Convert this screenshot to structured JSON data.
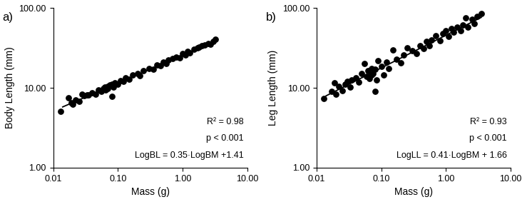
{
  "chart_data": [
    {
      "type": "scatter",
      "title": "a)",
      "x_label": "Mass (g)",
      "y_label": "Body Length (mm)",
      "log": true,
      "xlim": [
        0.01,
        10
      ],
      "ylim": [
        1,
        100
      ],
      "xticks": [
        0.01,
        {
          "value": 0.1,
          "label": "0.10"
        },
        {
          "value": 1,
          "label": "1.00"
        },
        {
          "value": 10,
          "label": "10.00"
        }
      ],
      "yticks": [
        {
          "value": 1,
          "label": "1.00"
        },
        {
          "value": 10,
          "label": "10.00"
        },
        {
          "value": 100,
          "label": "100.00"
        }
      ],
      "annotations": [
        "R² = 0.98",
        "p < 0.001",
        "LogBL = 0.35·LogBM +1.41"
      ],
      "series": [
        {
          "type": "scatter",
          "color": "#000000",
          "marker": "circle",
          "x": [
            0.013,
            0.017,
            0.019,
            0.02,
            0.022,
            0.025,
            0.028,
            0.03,
            0.033,
            0.035,
            0.04,
            0.045,
            0.05,
            0.055,
            0.06,
            0.062,
            0.065,
            0.07,
            0.07,
            0.075,
            0.08,
            0.08,
            0.085,
            0.09,
            0.1,
            0.11,
            0.12,
            0.13,
            0.15,
            0.17,
            0.2,
            0.22,
            0.25,
            0.3,
            0.35,
            0.4,
            0.45,
            0.5,
            0.55,
            0.6,
            0.7,
            0.8,
            0.9,
            1.0,
            1.1,
            1.2,
            1.3,
            1.5,
            1.7,
            1.8,
            2.0,
            2.2,
            2.5,
            2.7,
            3.0,
            3.2
          ],
          "values": [
            5.1,
            7.5,
            6.5,
            6.2,
            7.0,
            6.8,
            8.3,
            8.0,
            8.2,
            8.1,
            8.6,
            8.4,
            9.5,
            9.0,
            9.8,
            10.3,
            9.4,
            10.5,
            9.8,
            10.8,
            7.8,
            11.0,
            10.2,
            11.6,
            11.2,
            12.4,
            12.0,
            13.3,
            12.8,
            14.5,
            15.0,
            14.2,
            16.5,
            17.5,
            17.0,
            19.5,
            18.8,
            21.0,
            20.0,
            22.3,
            23.5,
            24.5,
            24.0,
            27.0,
            26.0,
            28.5,
            27.5,
            30.5,
            31.5,
            32.5,
            33.5,
            34.5,
            36.0,
            35.0,
            38.5,
            41.0
          ]
        },
        {
          "type": "line",
          "color": "#000000",
          "line_style": "solid",
          "x": [
            0.014,
            3.2
          ],
          "values": [
            5.77,
            38.6
          ]
        }
      ]
    },
    {
      "type": "scatter",
      "title": "b)",
      "x_label": "Mass (g)",
      "y_label": "Leg Length (mm)",
      "log": true,
      "xlim": [
        0.01,
        10
      ],
      "ylim": [
        1,
        100
      ],
      "xticks": [
        0.01,
        {
          "value": 0.1,
          "label": "0.10"
        },
        {
          "value": 1,
          "label": "1.00"
        },
        {
          "value": 10,
          "label": "10.00"
        }
      ],
      "yticks": [
        {
          "value": 1,
          "label": "1.00"
        },
        {
          "value": 10,
          "label": "10.00"
        },
        {
          "value": 100,
          "label": "100.00"
        }
      ],
      "annotations": [
        "R² = 0.93",
        "p < 0.001",
        "LogLL = 0.41·LogBM + 1.66"
      ],
      "series": [
        {
          "type": "scatter",
          "color": "#000000",
          "marker": "circle",
          "x": [
            0.013,
            0.017,
            0.019,
            0.02,
            0.022,
            0.025,
            0.028,
            0.03,
            0.033,
            0.035,
            0.04,
            0.045,
            0.05,
            0.055,
            0.06,
            0.062,
            0.065,
            0.07,
            0.07,
            0.075,
            0.08,
            0.08,
            0.085,
            0.09,
            0.1,
            0.11,
            0.12,
            0.13,
            0.15,
            0.17,
            0.2,
            0.22,
            0.25,
            0.3,
            0.35,
            0.4,
            0.45,
            0.5,
            0.55,
            0.6,
            0.7,
            0.8,
            0.9,
            1.0,
            1.1,
            1.2,
            1.3,
            1.5,
            1.7,
            1.8,
            2.0,
            2.2,
            2.5,
            2.7,
            3.0,
            3.5
          ],
          "values": [
            7.3,
            9.0,
            11.5,
            8.3,
            10.5,
            9.2,
            11.0,
            12.0,
            10.2,
            12.5,
            13.5,
            11.8,
            15.0,
            20.0,
            14.0,
            16.5,
            13.0,
            17.5,
            14.5,
            15.2,
            9.0,
            17.0,
            12.5,
            22.0,
            18.5,
            14.5,
            21.0,
            17.5,
            30.0,
            23.0,
            20.5,
            26.0,
            32.0,
            29.5,
            27.0,
            34.0,
            31.0,
            38.0,
            33.5,
            40.0,
            45.0,
            39.0,
            48.0,
            52.0,
            44.0,
            55.0,
            50.0,
            58.0,
            52.0,
            62.0,
            75.0,
            58.0,
            72.0,
            64.0,
            78.0,
            85.0
          ]
        },
        {
          "type": "line",
          "color": "#000000",
          "line_style": "solid",
          "x": [
            0.014,
            3.5
          ],
          "values": [
            7.94,
            76.4
          ]
        }
      ]
    }
  ]
}
